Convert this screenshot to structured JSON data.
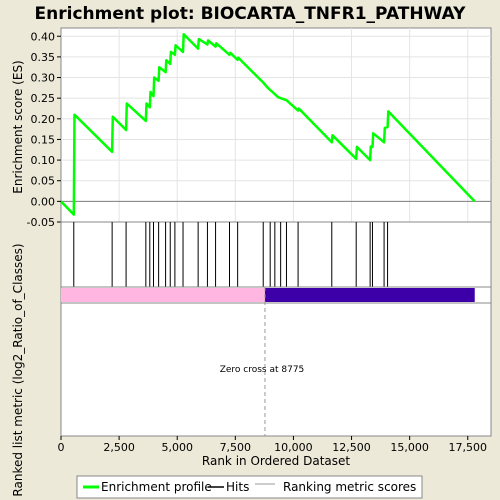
{
  "chart_data": {
    "type": "line",
    "title": "Enrichment plot: BIOCARTA_TNFR1_PATHWAY",
    "ylabel_top": "Enrichment score (ES)",
    "ylabel_bottom": "Ranked list metric (log2_Ratio_of_Classes)",
    "xlabel": "Rank in Ordered Dataset",
    "xlim": [
      0,
      18500
    ],
    "ylim": [
      -0.05,
      0.42
    ],
    "x_ticks": [
      0,
      2500,
      5000,
      7500,
      10000,
      12500,
      15000,
      17500
    ],
    "x_tick_labels": [
      "0",
      "2,500",
      "5,000",
      "7,500",
      "10,000",
      "12,500",
      "15,000",
      "17,500"
    ],
    "y_ticks": [
      -0.05,
      0.0,
      0.05,
      0.1,
      0.15,
      0.2,
      0.25,
      0.3,
      0.35,
      0.4
    ],
    "y_tick_labels": [
      "-0.05",
      "0.00",
      "0.05",
      "0.10",
      "0.15",
      "0.20",
      "0.25",
      "0.30",
      "0.35",
      "0.40"
    ],
    "grid": true,
    "series": [
      {
        "name": "Enrichment profile",
        "color": "#00ff00",
        "x": [
          0,
          550,
          580,
          2200,
          2230,
          2800,
          2830,
          3650,
          3680,
          3820,
          3850,
          3980,
          4010,
          4200,
          4230,
          4500,
          4530,
          4700,
          4730,
          4900,
          4930,
          5250,
          5280,
          5900,
          5930,
          6300,
          6330,
          6650,
          6680,
          7250,
          7280,
          7600,
          7630,
          8700,
          8900,
          9100,
          9350,
          9700,
          10200,
          10230,
          11650,
          11680,
          12700,
          12730,
          13300,
          13330,
          13400,
          13430,
          13900,
          13930,
          14050,
          14080,
          17800
        ],
        "y": [
          0.0,
          -0.032,
          0.21,
          0.12,
          0.205,
          0.173,
          0.237,
          0.195,
          0.237,
          0.228,
          0.265,
          0.255,
          0.3,
          0.292,
          0.325,
          0.313,
          0.342,
          0.333,
          0.362,
          0.355,
          0.378,
          0.362,
          0.405,
          0.37,
          0.393,
          0.38,
          0.39,
          0.375,
          0.383,
          0.355,
          0.36,
          0.343,
          0.348,
          0.288,
          0.275,
          0.265,
          0.252,
          0.245,
          0.22,
          0.225,
          0.143,
          0.16,
          0.103,
          0.132,
          0.1,
          0.133,
          0.132,
          0.165,
          0.143,
          0.178,
          0.18,
          0.218,
          0.0
        ]
      }
    ],
    "hits": [
      550,
      2200,
      2800,
      3650,
      3820,
      3980,
      4200,
      4500,
      4700,
      4900,
      5250,
      5900,
      6300,
      6650,
      7250,
      7600,
      8700,
      9000,
      9200,
      9450,
      9700,
      10200,
      11650,
      12700,
      13300,
      13400,
      13900,
      14050
    ],
    "metric_bar": {
      "positive_end": 8775,
      "total": 17800,
      "positive_color": "#ffb6e1",
      "negative_color": "#3d00a8"
    },
    "zero_cross_label": "Zero cross at 8775",
    "zero_cross_x": 8775,
    "legend": [
      {
        "name": "Enrichment profile",
        "color": "#00ff00"
      },
      {
        "name": "Hits",
        "color": "#000000"
      },
      {
        "name": "Ranking metric scores",
        "color": "#bbbbbb"
      }
    ],
    "legend_position": "bottom"
  }
}
